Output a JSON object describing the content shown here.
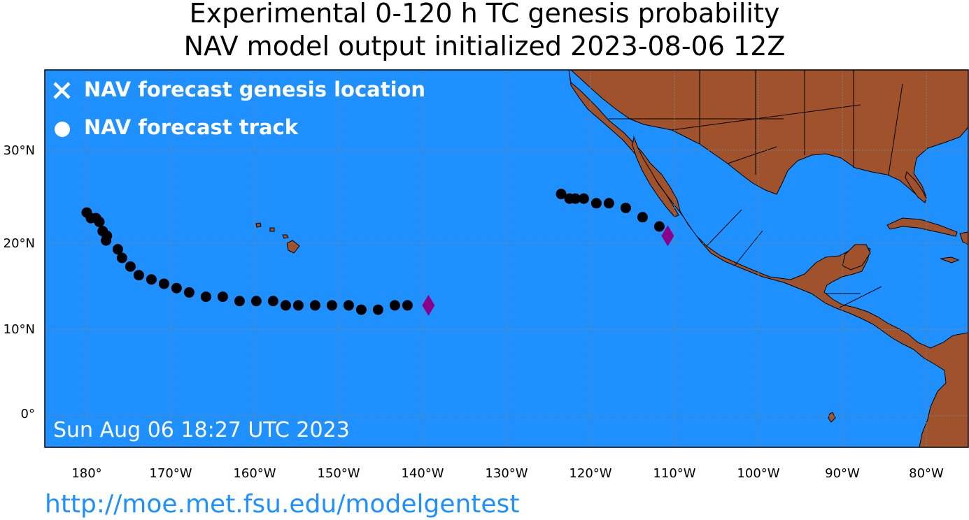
{
  "title": {
    "line1": "Experimental 0-120 h TC genesis probability",
    "line2": "NAV model output initialized 2023-08-06 12Z"
  },
  "legend": {
    "genesis_label": "NAV forecast genesis location",
    "track_label": "NAV forecast track",
    "genesis_icon": "x-mark-icon",
    "track_icon": "filled-circle-icon"
  },
  "timestamp": "Sun Aug 06 18:27 UTC 2023",
  "axes": {
    "lon_labels": [
      "180°",
      "170°W",
      "160°W",
      "150°W",
      "140°W",
      "130°W",
      "120°W",
      "110°W",
      "100°W",
      "90°W",
      "80°W"
    ],
    "lat_labels": [
      "30°N",
      "20°N",
      "10°N",
      "0°"
    ]
  },
  "colors": {
    "ocean": "#1e90ff",
    "land": "#a0522d",
    "track": "#000000",
    "genesis_marker": "#8b008b",
    "gridlines": "#808080",
    "url": "#1e90ff"
  },
  "tracks": [
    {
      "name": "western",
      "points": [
        [
          180.0,
          23.3
        ],
        [
          179.5,
          22.7
        ],
        [
          178.9,
          22.7
        ],
        [
          178.5,
          22.3
        ],
        [
          178.1,
          21.3
        ],
        [
          177.6,
          20.8
        ],
        [
          177.7,
          20.3
        ],
        [
          176.3,
          19.3
        ],
        [
          175.8,
          18.3
        ],
        [
          174.8,
          17.3
        ],
        [
          173.8,
          16.3
        ],
        [
          172.3,
          15.8
        ],
        [
          170.8,
          15.3
        ],
        [
          169.3,
          14.8
        ],
        [
          167.8,
          14.3
        ],
        [
          165.8,
          13.8
        ],
        [
          163.8,
          13.8
        ],
        [
          161.8,
          13.3
        ],
        [
          159.8,
          13.3
        ],
        [
          157.8,
          13.3
        ],
        [
          156.3,
          12.8
        ],
        [
          154.8,
          12.8
        ],
        [
          152.8,
          12.8
        ],
        [
          150.8,
          12.8
        ],
        [
          148.8,
          12.8
        ],
        [
          147.3,
          12.3
        ],
        [
          145.3,
          12.3
        ],
        [
          143.3,
          12.8
        ],
        [
          141.8,
          12.8
        ]
      ],
      "genesis": [
        139.3,
        12.8
      ]
    },
    {
      "name": "eastern",
      "points": [
        [
          123.5,
          25.3
        ],
        [
          122.5,
          24.8
        ],
        [
          121.8,
          24.8
        ],
        [
          120.8,
          24.8
        ],
        [
          119.3,
          24.3
        ],
        [
          117.8,
          24.3
        ],
        [
          115.8,
          23.8
        ],
        [
          113.8,
          22.8
        ],
        [
          111.8,
          21.8
        ]
      ],
      "genesis": [
        110.8,
        20.8
      ]
    }
  ],
  "url": "http://moe.met.fsu.edu/modelgentest"
}
